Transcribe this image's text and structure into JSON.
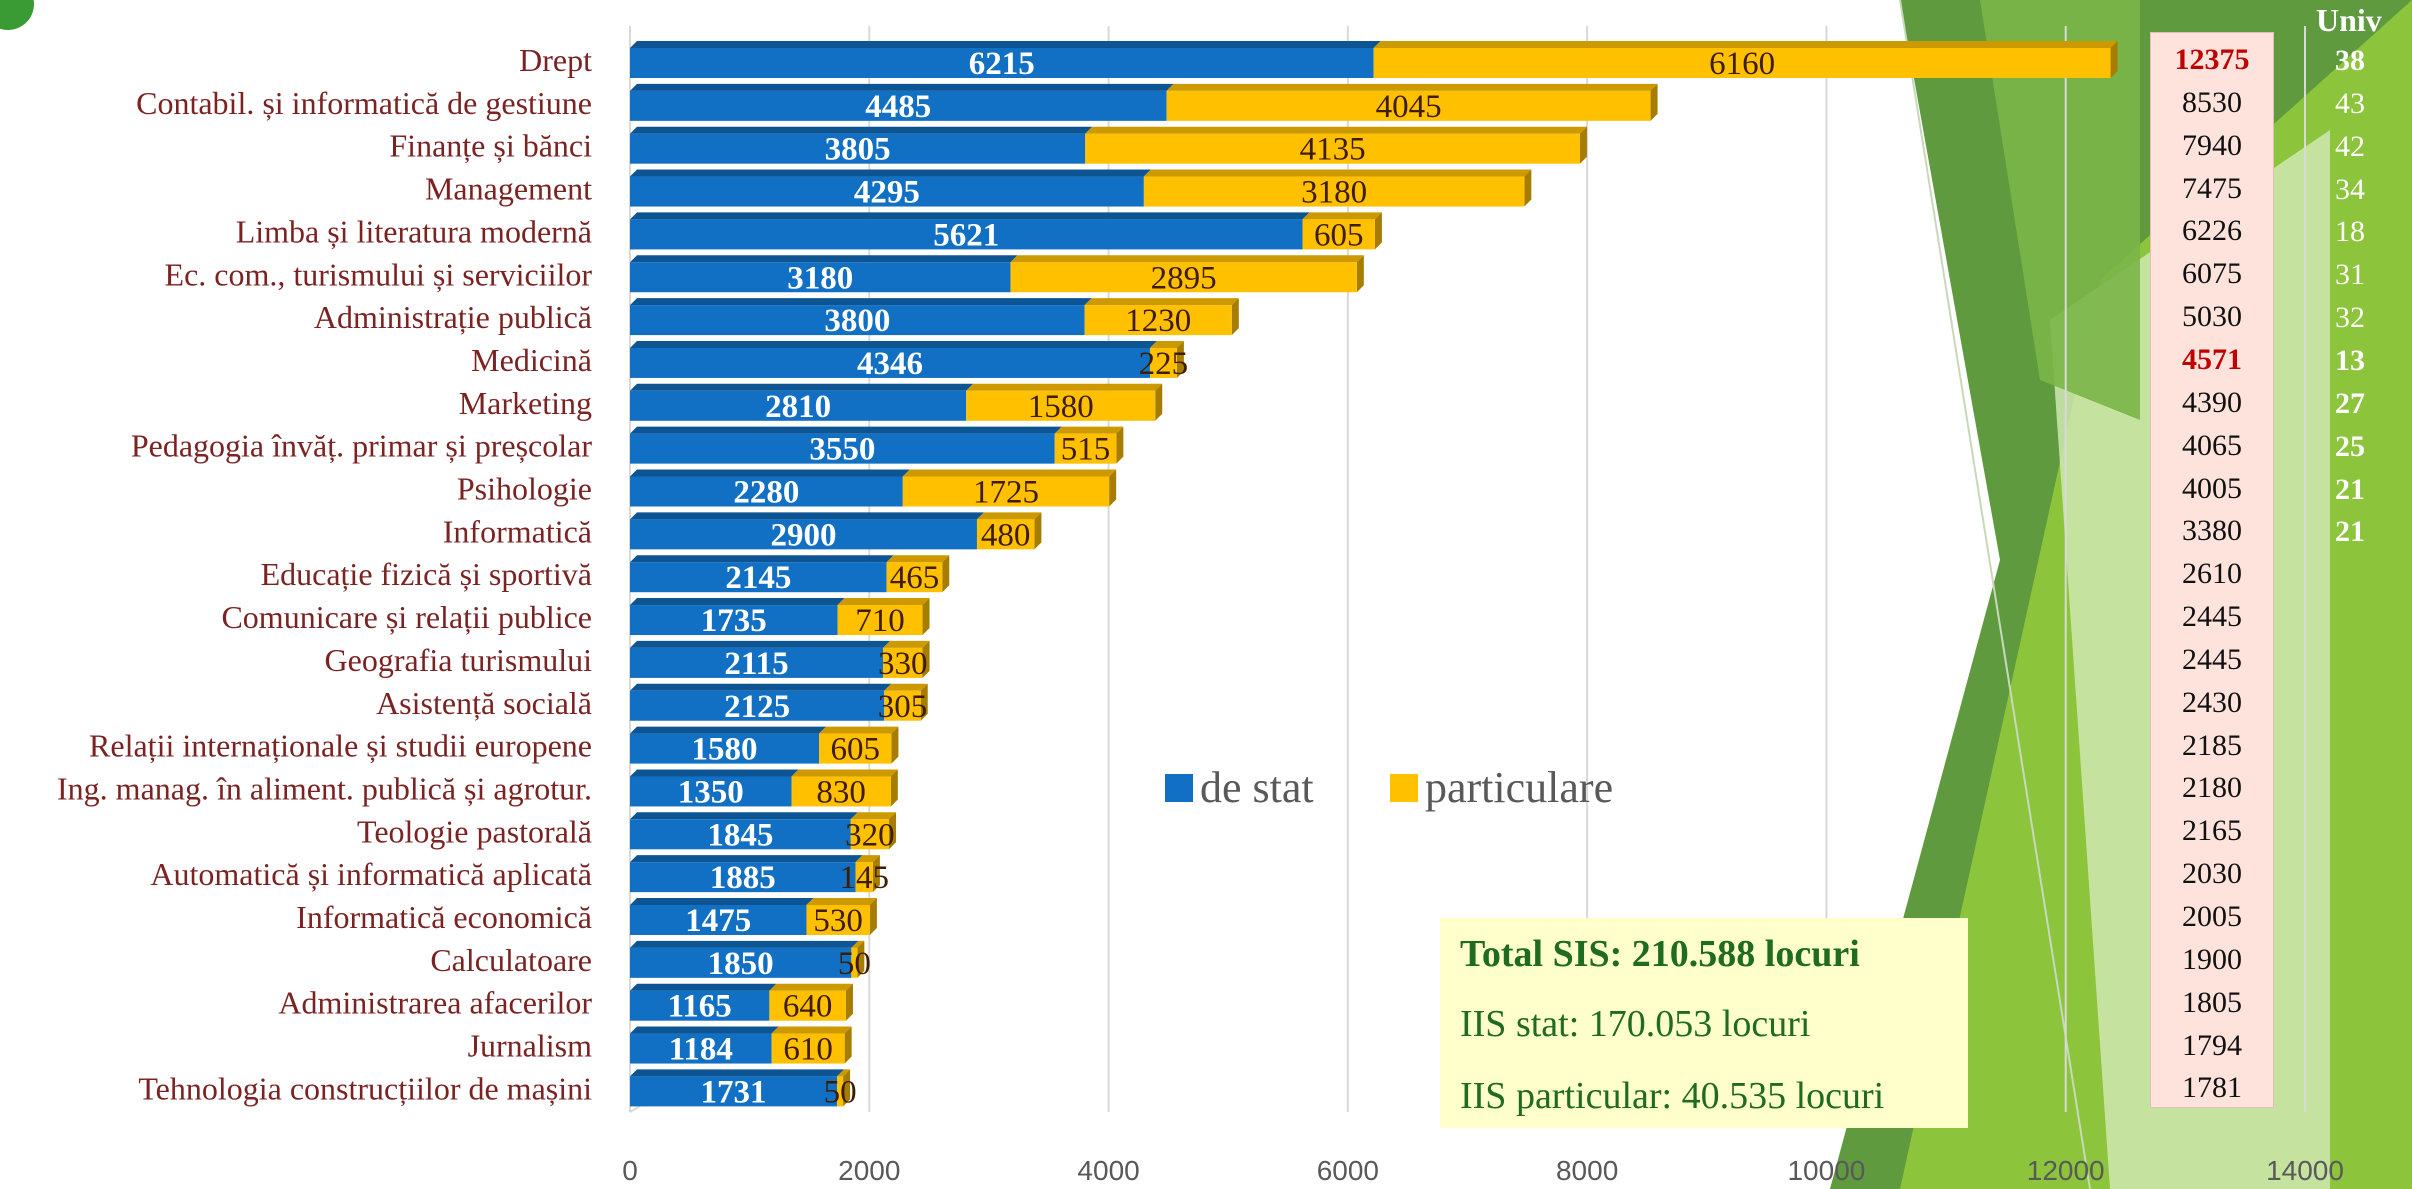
{
  "chart_data": {
    "type": "bar",
    "orientation": "horizontal",
    "stacked": true,
    "categories": [
      "Drept",
      "Contabil. și informatică de gestiune",
      "Finanțe și bănci",
      "Management",
      "Limba și literatura modernă",
      "Ec. com., turismului și serviciilor",
      "Administrație publică",
      "Medicină",
      "Marketing",
      "Pedagogia învăț. primar și preșcolar",
      "Psihologie",
      "Informatică",
      "Educație fizică și sportivă",
      "Comunicare și relații publice",
      "Geografia turismului",
      "Asistență socială",
      "Relații internaționale și studii europene",
      "Ing. manag. în aliment. publică și agrotur.",
      "Teologie pastorală",
      "Automatică și informatică aplicată",
      "Informatică economică",
      "Calculatoare",
      "Administrarea afacerilor",
      "Jurnalism",
      "Tehnologia construcțiilor de mașini"
    ],
    "series": [
      {
        "name": "de stat",
        "color": "#1170c4",
        "values": [
          6215,
          4485,
          3805,
          4295,
          5621,
          3180,
          3800,
          4346,
          2810,
          3550,
          2280,
          2900,
          2145,
          1735,
          2115,
          2125,
          1580,
          1350,
          1845,
          1885,
          1475,
          1850,
          1165,
          1184,
          1731
        ]
      },
      {
        "name": "particulare",
        "color": "#ffc000",
        "values": [
          6160,
          4045,
          4135,
          3180,
          605,
          2895,
          1230,
          225,
          1580,
          515,
          1725,
          480,
          465,
          710,
          330,
          305,
          605,
          830,
          320,
          145,
          530,
          50,
          640,
          610,
          50
        ]
      }
    ],
    "xlim": [
      0,
      14000
    ],
    "xticks": [
      0,
      2000,
      4000,
      6000,
      8000,
      10000,
      12000,
      14000
    ],
    "grid": "vertical",
    "legend_position": "center-right"
  },
  "totals": [
    "12375",
    "8530",
    "7940",
    "7475",
    "6226",
    "6075",
    "5030",
    "4571",
    "4390",
    "4065",
    "4005",
    "3380",
    "2610",
    "2445",
    "2445",
    "2430",
    "2185",
    "2180",
    "2165",
    "2030",
    "2005",
    "1900",
    "1805",
    "1794",
    "1781"
  ],
  "totals_highlight": [
    0,
    7
  ],
  "univ": {
    "header": "Univ",
    "values": [
      "38",
      "43",
      "42",
      "34",
      "18",
      "31",
      "32",
      "13",
      "27",
      "25",
      "21",
      "21"
    ],
    "bold": [
      0,
      7,
      8,
      9,
      10,
      11
    ]
  },
  "summary": {
    "title": "Total SIS: 210.588 locuri",
    "stat": "IIS stat: 170.053 locuri",
    "particular": "IIS particular: 40.535 locuri"
  },
  "colors": {
    "stat": "#1170c4",
    "particulare": "#ffc000",
    "category_text": "#7b2323",
    "accent_green": "#7ab648"
  }
}
